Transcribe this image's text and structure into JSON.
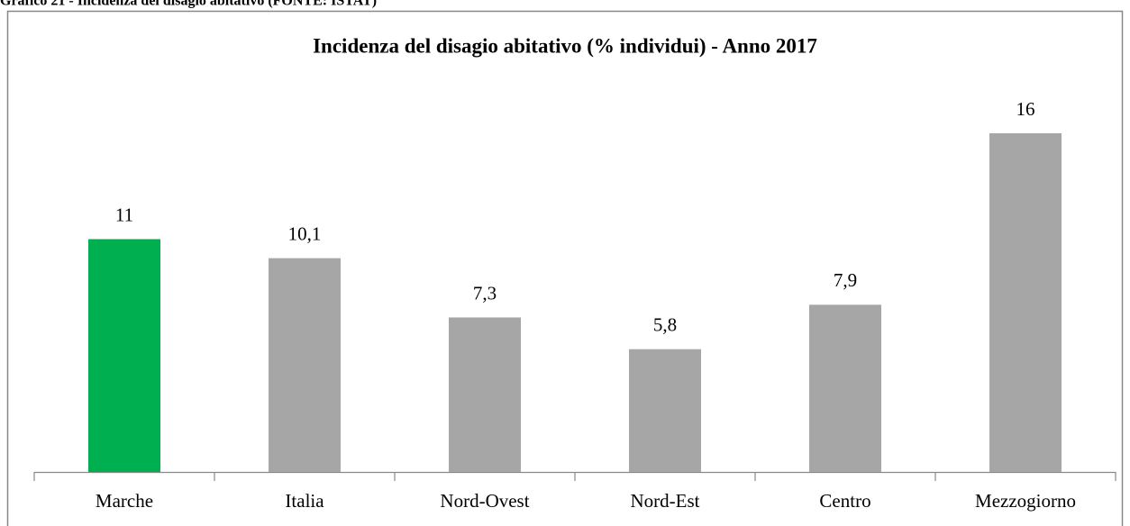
{
  "caption": "Grafico 21 - Incidenza del disagio abitativo (FONTE: ISTAT)",
  "chart_data": {
    "type": "bar",
    "title": "Incidenza del disagio abitativo (% individui) - Anno 2017",
    "categories": [
      "Marche",
      "Italia",
      "Nord-Ovest",
      "Nord-Est",
      "Centro",
      "Mezzogiorno"
    ],
    "values": [
      11,
      10.1,
      7.3,
      5.8,
      7.9,
      16
    ],
    "value_labels": [
      "11",
      "10,1",
      "7,3",
      "5,8",
      "7,9",
      "16"
    ],
    "colors": [
      "#00b050",
      "#a6a6a6",
      "#a6a6a6",
      "#a6a6a6",
      "#a6a6a6",
      "#a6a6a6"
    ]
  }
}
